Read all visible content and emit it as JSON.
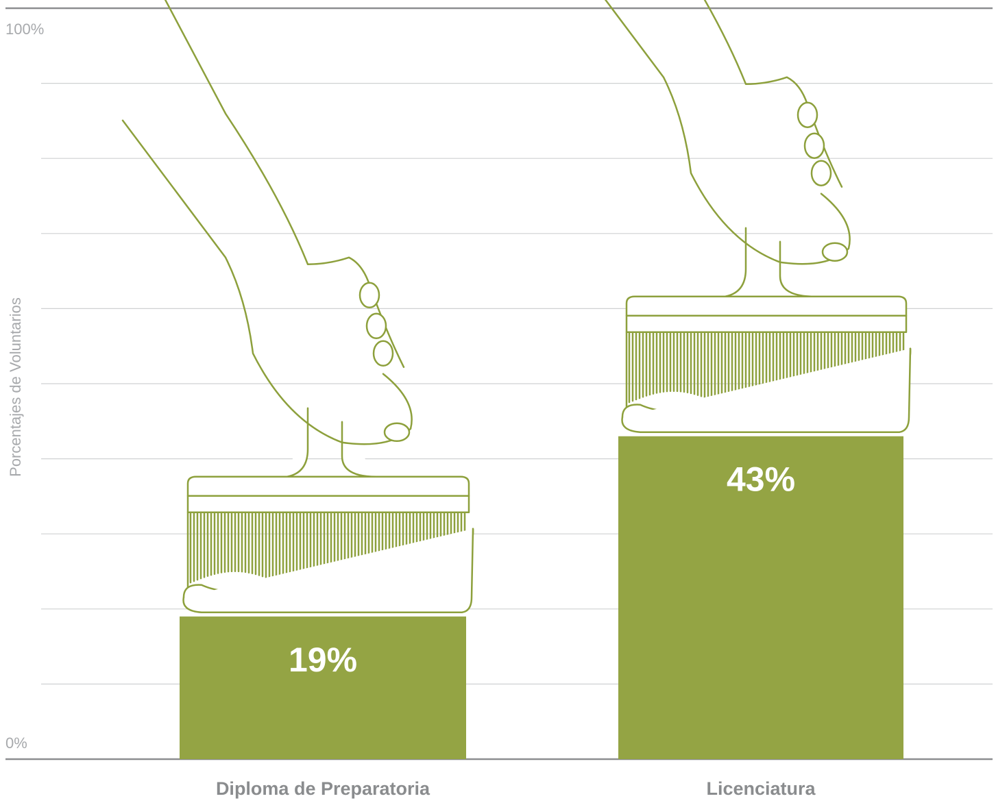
{
  "colors": {
    "bar": "#94a444",
    "line_art": "#8da03c",
    "grid": "#cfd1d2",
    "axis": "#8c8e90",
    "tick_text": "#a7a9ac",
    "category_text": "#8a8c8e"
  },
  "chart_data": {
    "type": "bar",
    "categories": [
      "Diploma de Preparatoria",
      "Licenciatura"
    ],
    "values": [
      19,
      43
    ],
    "value_labels": [
      "19%",
      "43%"
    ],
    "ylabel": "Porcentajes de Voluntarios",
    "ylim": [
      0,
      100
    ],
    "y_tick_labels": [
      "0%",
      "100%"
    ],
    "gridlines": 10,
    "grid": true,
    "legend": "none",
    "decoration": "paint-brush-in-hand"
  }
}
